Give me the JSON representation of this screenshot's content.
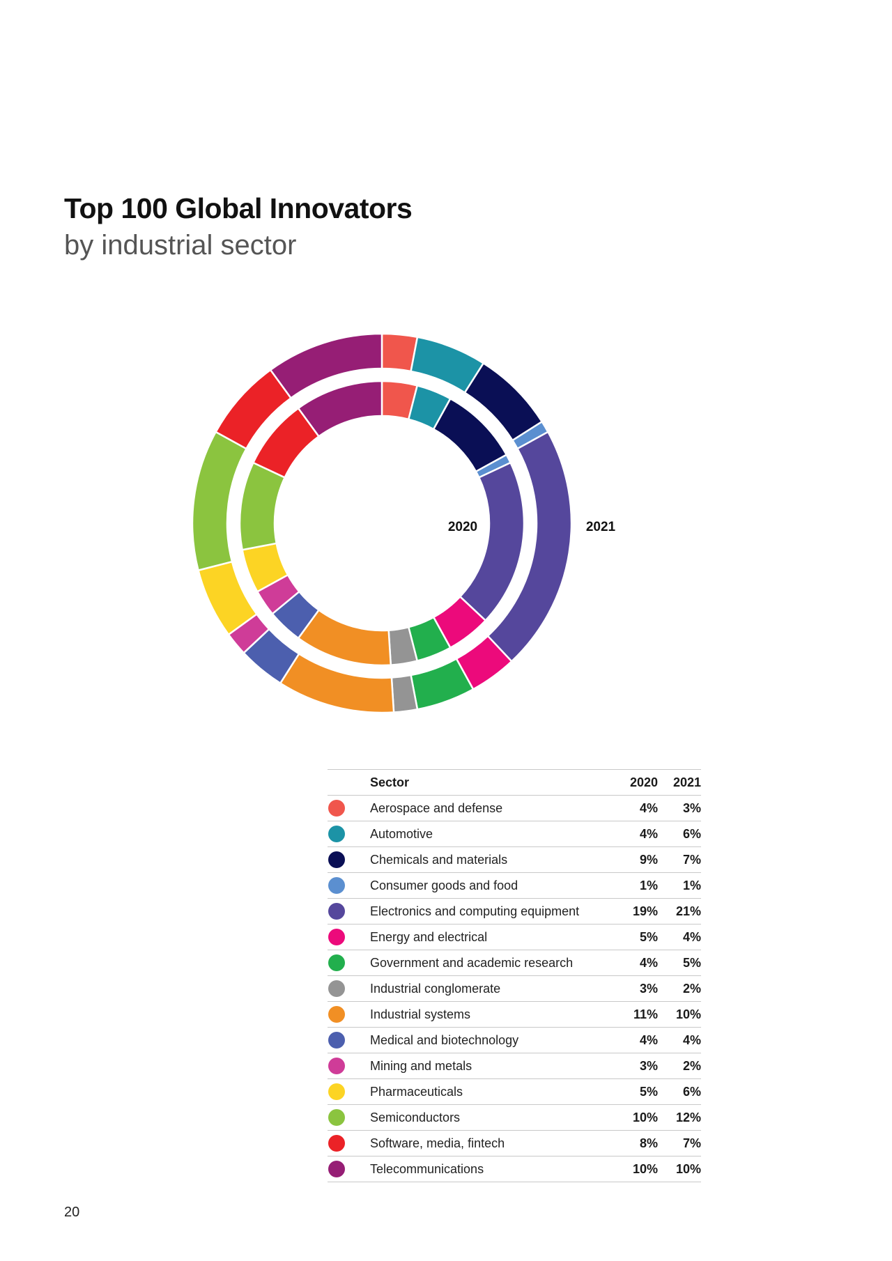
{
  "page": {
    "title": "Top 100 Global Innovators",
    "subtitle": "by industrial sector",
    "page_number": "20"
  },
  "chart_data": {
    "type": "donut",
    "rings": [
      {
        "name": "2020",
        "position": "inner"
      },
      {
        "name": "2021",
        "position": "outer"
      }
    ],
    "start_angle": "12 o'clock",
    "direction": "clockwise",
    "segments": [
      {
        "sector": "Aerospace and defense",
        "color": "#F0564C",
        "2020": 4,
        "2021": 3
      },
      {
        "sector": "Automotive",
        "color": "#1C93A6",
        "2020": 4,
        "2021": 6
      },
      {
        "sector": "Chemicals and materials",
        "color": "#0A0F55",
        "2020": 9,
        "2021": 7
      },
      {
        "sector": "Consumer goods and food",
        "color": "#5B8FD0",
        "2020": 1,
        "2021": 1
      },
      {
        "sector": "Electronics and computing equipment",
        "color": "#55479C",
        "2020": 19,
        "2021": 21
      },
      {
        "sector": "Energy and electrical",
        "color": "#EC0A7B",
        "2020": 5,
        "2021": 4
      },
      {
        "sector": "Government and academic research",
        "color": "#22AF4D",
        "2020": 4,
        "2021": 5
      },
      {
        "sector": "Industrial conglomerate",
        "color": "#949494",
        "2020": 3,
        "2021": 2
      },
      {
        "sector": "Industrial systems",
        "color": "#F18F24",
        "2020": 11,
        "2021": 10
      },
      {
        "sector": "Medical and biotechnology",
        "color": "#4C5FAE",
        "2020": 4,
        "2021": 4
      },
      {
        "sector": "Mining and metals",
        "color": "#CF3C98",
        "2020": 3,
        "2021": 2
      },
      {
        "sector": "Pharmaceuticals",
        "color": "#FCD424",
        "2020": 5,
        "2021": 6
      },
      {
        "sector": "Semiconductors",
        "color": "#8BC43F",
        "2020": 10,
        "2021": 12
      },
      {
        "sector": "Software, media, fintech",
        "color": "#EB2227",
        "2020": 8,
        "2021": 7
      },
      {
        "sector": "Telecommunications",
        "color": "#961E75",
        "2020": 10,
        "2021": 10
      }
    ]
  },
  "table": {
    "headers": {
      "sector": "Sector",
      "y2020": "2020",
      "y2021": "2021"
    },
    "rows": [
      {
        "sector": "Aerospace and defense",
        "v2020": "4%",
        "v2021": "3%",
        "color": "#F0564C"
      },
      {
        "sector": "Automotive",
        "v2020": "4%",
        "v2021": "6%",
        "color": "#1C93A6"
      },
      {
        "sector": "Chemicals and materials",
        "v2020": "9%",
        "v2021": "7%",
        "color": "#0A0F55"
      },
      {
        "sector": "Consumer goods and food",
        "v2020": "1%",
        "v2021": "1%",
        "color": "#5B8FD0"
      },
      {
        "sector": "Electronics and computing equipment",
        "v2020": "19%",
        "v2021": "21%",
        "color": "#55479C"
      },
      {
        "sector": "Energy and electrical",
        "v2020": "5%",
        "v2021": "4%",
        "color": "#EC0A7B"
      },
      {
        "sector": "Government and academic research",
        "v2020": "4%",
        "v2021": "5%",
        "color": "#22AF4D"
      },
      {
        "sector": "Industrial conglomerate",
        "v2020": "3%",
        "v2021": "2%",
        "color": "#949494"
      },
      {
        "sector": "Industrial systems",
        "v2020": "11%",
        "v2021": "10%",
        "color": "#F18F24"
      },
      {
        "sector": "Medical and biotechnology",
        "v2020": "4%",
        "v2021": "4%",
        "color": "#4C5FAE"
      },
      {
        "sector": "Mining and metals",
        "v2020": "3%",
        "v2021": "2%",
        "color": "#CF3C98"
      },
      {
        "sector": "Pharmaceuticals",
        "v2020": "5%",
        "v2021": "6%",
        "color": "#FCD424"
      },
      {
        "sector": "Semiconductors",
        "v2020": "10%",
        "v2021": "12%",
        "color": "#8BC43F"
      },
      {
        "sector": "Software, media, fintech",
        "v2020": "8%",
        "v2021": "7%",
        "color": "#EB2227"
      },
      {
        "sector": "Telecommunications",
        "v2020": "10%",
        "v2021": "10%",
        "color": "#961E75"
      }
    ]
  }
}
